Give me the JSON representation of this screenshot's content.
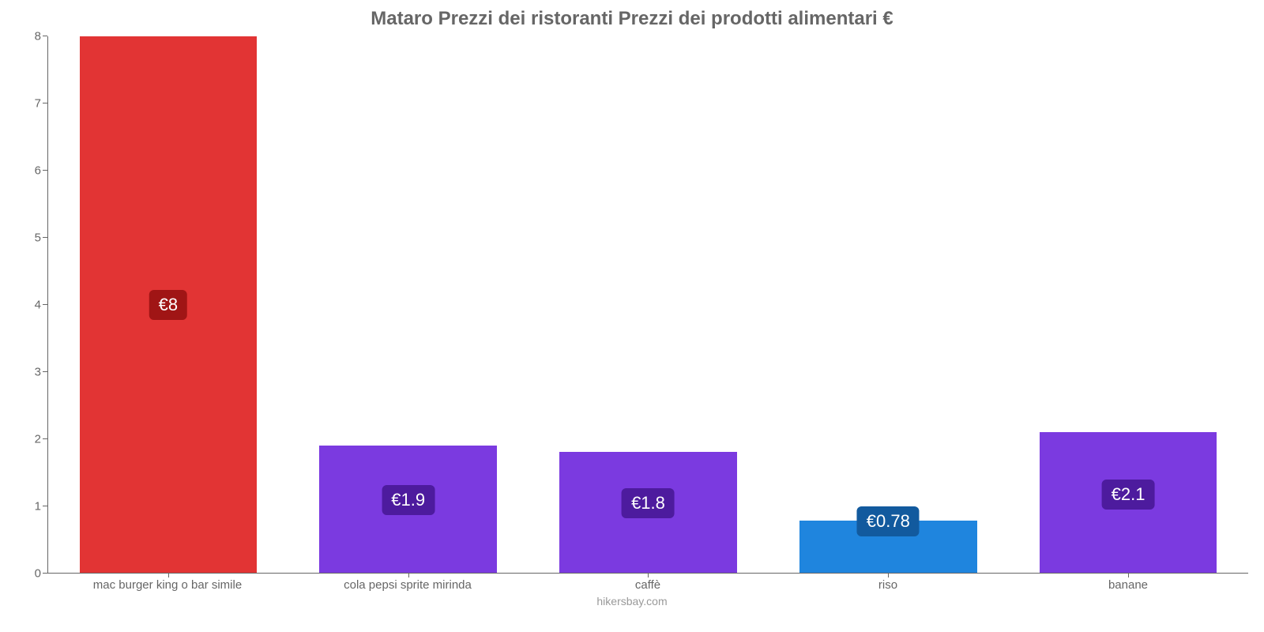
{
  "chart": {
    "type": "bar",
    "title": "Mataro Prezzi dei ristoranti Prezzi dei prodotti alimentari €",
    "title_color": "#666666",
    "title_fontsize": 24,
    "background_color": "#ffffff",
    "axis_color": "#666666",
    "label_color": "#666666",
    "label_fontsize": 15,
    "ylim_min": 0,
    "ylim_max": 8,
    "ytick_step": 1,
    "yticks": [
      0,
      1,
      2,
      3,
      4,
      5,
      6,
      7,
      8
    ],
    "bar_width_pct": 74,
    "value_label_fontsize": 22,
    "value_label_text_color": "#ffffff",
    "badge_colors": {
      "red": "#a01515",
      "purple": "#4d1b9e",
      "blue": "#125a9e"
    },
    "bars": [
      {
        "category": "mac burger king o bar simile",
        "value": 8,
        "value_label": "€8",
        "color": "#e23434",
        "badge_color": "#a01515"
      },
      {
        "category": "cola pepsi sprite mirinda",
        "value": 1.9,
        "value_label": "€1.9",
        "color": "#7b3ae0",
        "badge_color": "#4d1b9e"
      },
      {
        "category": "caffè",
        "value": 1.8,
        "value_label": "€1.8",
        "color": "#7b3ae0",
        "badge_color": "#4d1b9e"
      },
      {
        "category": "riso",
        "value": 0.78,
        "value_label": "€0.78",
        "color": "#1f85de",
        "badge_color": "#125a9e"
      },
      {
        "category": "banane",
        "value": 2.1,
        "value_label": "€2.1",
        "color": "#7b3ae0",
        "badge_color": "#4d1b9e"
      }
    ],
    "attribution": "hikersbay.com",
    "attribution_color": "#999999"
  }
}
